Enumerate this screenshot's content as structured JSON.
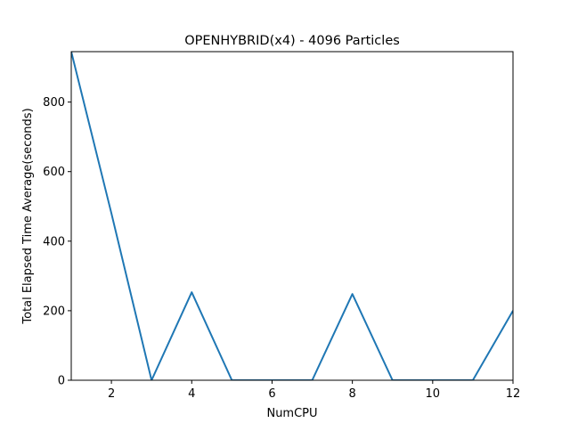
{
  "chart_data": {
    "type": "line",
    "title": "OPENHYBRID(x4) - 4096 Particles",
    "xlabel": "NumCPU",
    "ylabel": "Total Elapsed Time Average(seconds)",
    "xlim": [
      1,
      12
    ],
    "ylim": [
      0,
      945
    ],
    "xticks": [
      2,
      4,
      6,
      8,
      10,
      12
    ],
    "yticks": [
      0,
      200,
      400,
      600,
      800
    ],
    "grid": false,
    "legend": "none",
    "series": [
      {
        "color": "#1f77b4",
        "x": [
          1,
          2,
          3,
          4,
          5,
          6,
          7,
          8,
          9,
          10,
          11,
          12
        ],
        "y": [
          945,
          480,
          0,
          253,
          0,
          0,
          0,
          248,
          0,
          0,
          0,
          200
        ]
      }
    ]
  }
}
